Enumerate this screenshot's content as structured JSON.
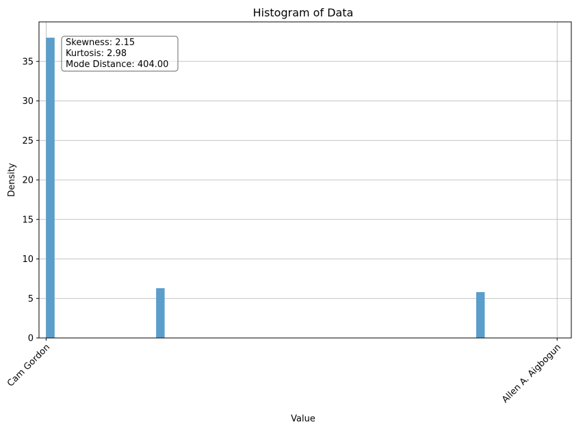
{
  "chart_data": {
    "type": "bar",
    "title": "Histogram of Data",
    "xlabel": "Value",
    "ylabel": "Density",
    "ylim": [
      0,
      40
    ],
    "yticks": [
      0,
      5,
      10,
      15,
      20,
      25,
      30,
      35
    ],
    "xlim": [
      -0.1,
      7.4
    ],
    "xtick_labels": [
      {
        "value": 0,
        "label": "Cam Gordon"
      },
      {
        "value": 7.2,
        "label": "Allen A. Aigbogun"
      }
    ],
    "bar_width": 0.12,
    "bars": [
      {
        "x": 0.0,
        "value": 38.0
      },
      {
        "x": 1.55,
        "value": 6.3
      },
      {
        "x": 6.06,
        "value": 5.8
      }
    ],
    "grid": true,
    "color": "#5b9dcb",
    "annotation": {
      "lines": [
        "Skewness: 2.15",
        "Kurtosis: 2.98",
        "Mode Distance: 404.00"
      ]
    }
  }
}
